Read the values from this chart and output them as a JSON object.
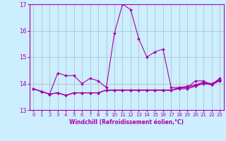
{
  "xlabel": "Windchill (Refroidissement éolien,°C)",
  "ylabel": "",
  "bg_color": "#cceeff",
  "grid_color": "#aaaaaa",
  "line_color": "#aa00aa",
  "xlim": [
    -0.5,
    23.5
  ],
  "ylim": [
    13,
    17
  ],
  "yticks": [
    13,
    14,
    15,
    16,
    17
  ],
  "xticks": [
    0,
    1,
    2,
    3,
    4,
    5,
    6,
    7,
    8,
    9,
    10,
    11,
    12,
    13,
    14,
    15,
    16,
    17,
    18,
    19,
    20,
    21,
    22,
    23
  ],
  "series": [
    [
      13.8,
      13.7,
      13.6,
      14.4,
      14.3,
      14.3,
      14.0,
      14.2,
      14.1,
      13.85,
      15.9,
      17.0,
      16.8,
      15.7,
      15.0,
      15.2,
      15.3,
      13.85,
      13.85,
      13.85,
      14.1,
      14.1,
      13.95,
      14.2
    ],
    [
      13.8,
      13.7,
      13.6,
      13.65,
      13.55,
      13.65,
      13.65,
      13.65,
      13.65,
      13.75,
      13.75,
      13.75,
      13.75,
      13.75,
      13.75,
      13.75,
      13.75,
      13.75,
      13.8,
      13.8,
      13.9,
      14.0,
      13.95,
      14.1
    ],
    [
      13.8,
      13.7,
      13.6,
      13.65,
      13.55,
      13.65,
      13.65,
      13.65,
      13.65,
      13.75,
      13.75,
      13.75,
      13.75,
      13.75,
      13.75,
      13.75,
      13.75,
      13.75,
      13.85,
      13.9,
      13.95,
      14.05,
      14.0,
      14.15
    ],
    [
      13.8,
      13.7,
      13.6,
      13.65,
      13.55,
      13.65,
      13.65,
      13.65,
      13.65,
      13.75,
      13.75,
      13.75,
      13.75,
      13.75,
      13.75,
      13.75,
      13.75,
      13.75,
      13.82,
      13.85,
      13.92,
      14.02,
      13.97,
      14.12
    ]
  ]
}
